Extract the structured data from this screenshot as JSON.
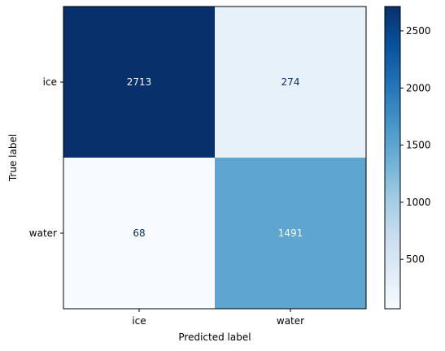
{
  "chart_data": {
    "type": "heatmap",
    "title": "",
    "xlabel": "Predicted label",
    "ylabel": "True label",
    "x_categories": [
      "ice",
      "water"
    ],
    "y_categories": [
      "ice",
      "water"
    ],
    "matrix": [
      [
        2713,
        274
      ],
      [
        68,
        1491
      ]
    ],
    "colormap": "Blues",
    "colorbar": {
      "ticks": [
        500,
        1000,
        1500,
        2000,
        2500
      ],
      "range": [
        68,
        2713
      ]
    },
    "colors": {
      "low": "#f7fbff",
      "high": "#08306b",
      "text_dark": "#08306b",
      "text_light": "#f7fbff"
    }
  }
}
